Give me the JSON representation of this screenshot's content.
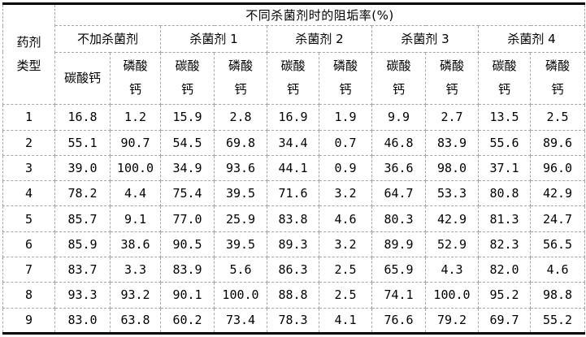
{
  "table": {
    "corner_header": "药剂\n类型",
    "title": "不同杀菌剂时的阻垢率(%)",
    "groups": [
      {
        "label": "不加杀菌剂",
        "sub": [
          "碳酸钙",
          "磷酸\n钙"
        ]
      },
      {
        "label": "杀菌剂 1",
        "sub": [
          "碳酸\n钙",
          "磷酸\n钙"
        ]
      },
      {
        "label": "杀菌剂 2",
        "sub": [
          "碳酸\n钙",
          "磷酸\n钙"
        ]
      },
      {
        "label": "杀菌剂 3",
        "sub": [
          "碳酸\n钙",
          "磷酸\n钙"
        ]
      },
      {
        "label": "杀菌剂 4",
        "sub": [
          "碳酸\n钙",
          "磷酸\n钙"
        ]
      }
    ],
    "rows": [
      {
        "id": "1",
        "values": [
          "16.8",
          "1.2",
          "15.9",
          "2.8",
          "16.9",
          "1.9",
          "9.9",
          "2.7",
          "13.5",
          "2.5"
        ]
      },
      {
        "id": "2",
        "values": [
          "55.1",
          "90.7",
          "54.5",
          "69.8",
          "34.4",
          "0.7",
          "46.8",
          "83.9",
          "55.6",
          "89.6"
        ]
      },
      {
        "id": "3",
        "values": [
          "39.0",
          "100.0",
          "34.9",
          "93.6",
          "44.1",
          "0.9",
          "36.6",
          "98.0",
          "37.1",
          "96.0"
        ]
      },
      {
        "id": "4",
        "values": [
          "78.2",
          "4.4",
          "75.4",
          "39.5",
          "71.6",
          "3.2",
          "64.7",
          "53.3",
          "80.8",
          "42.9"
        ]
      },
      {
        "id": "5",
        "values": [
          "85.7",
          "9.1",
          "77.0",
          "25.9",
          "83.8",
          "4.6",
          "80.3",
          "42.9",
          "81.3",
          "24.7"
        ]
      },
      {
        "id": "6",
        "values": [
          "85.9",
          "38.6",
          "90.5",
          "39.5",
          "89.3",
          "3.2",
          "89.9",
          "52.9",
          "82.3",
          "56.5"
        ]
      },
      {
        "id": "7",
        "values": [
          "83.7",
          "3.3",
          "83.9",
          "5.6",
          "86.3",
          "2.5",
          "65.9",
          "4.3",
          "82.0",
          "4.6"
        ]
      },
      {
        "id": "8",
        "values": [
          "93.3",
          "93.2",
          "90.1",
          "100.0",
          "88.8",
          "2.5",
          "74.1",
          "100.0",
          "95.2",
          "98.8"
        ]
      },
      {
        "id": "9",
        "values": [
          "83.0",
          "63.8",
          "60.2",
          "73.4",
          "78.3",
          "4.1",
          "76.6",
          "79.2",
          "69.7",
          "55.2"
        ]
      }
    ]
  },
  "colors": {
    "background": "#ffffff",
    "text": "#000000",
    "border_dashed": "#a6a6a6",
    "border_solid": "#000000"
  }
}
